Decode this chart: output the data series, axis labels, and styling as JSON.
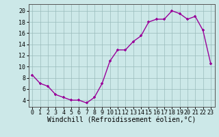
{
  "x": [
    0,
    1,
    2,
    3,
    4,
    5,
    6,
    7,
    8,
    9,
    10,
    11,
    12,
    13,
    14,
    15,
    16,
    17,
    18,
    19,
    20,
    21,
    22,
    23
  ],
  "y": [
    8.5,
    7.0,
    6.5,
    5.0,
    4.5,
    4.0,
    4.0,
    3.5,
    4.5,
    7.0,
    11.0,
    13.0,
    13.0,
    14.5,
    15.5,
    18.0,
    18.5,
    18.5,
    20.0,
    19.5,
    18.5,
    19.0,
    16.5,
    10.5
  ],
  "xlim": [
    -0.5,
    23.5
  ],
  "ylim": [
    2.8,
    21.2
  ],
  "yticks": [
    4,
    6,
    8,
    10,
    12,
    14,
    16,
    18,
    20
  ],
  "xticks": [
    0,
    1,
    2,
    3,
    4,
    5,
    6,
    7,
    8,
    9,
    10,
    11,
    12,
    13,
    14,
    15,
    16,
    17,
    18,
    19,
    20,
    21,
    22,
    23
  ],
  "xlabel": "Windchill (Refroidissement éolien,°C)",
  "line_color": "#990099",
  "bg_color": "#cce8e8",
  "grid_color": "#99bbbb",
  "xlabel_fontsize": 7,
  "tick_fontsize": 6
}
